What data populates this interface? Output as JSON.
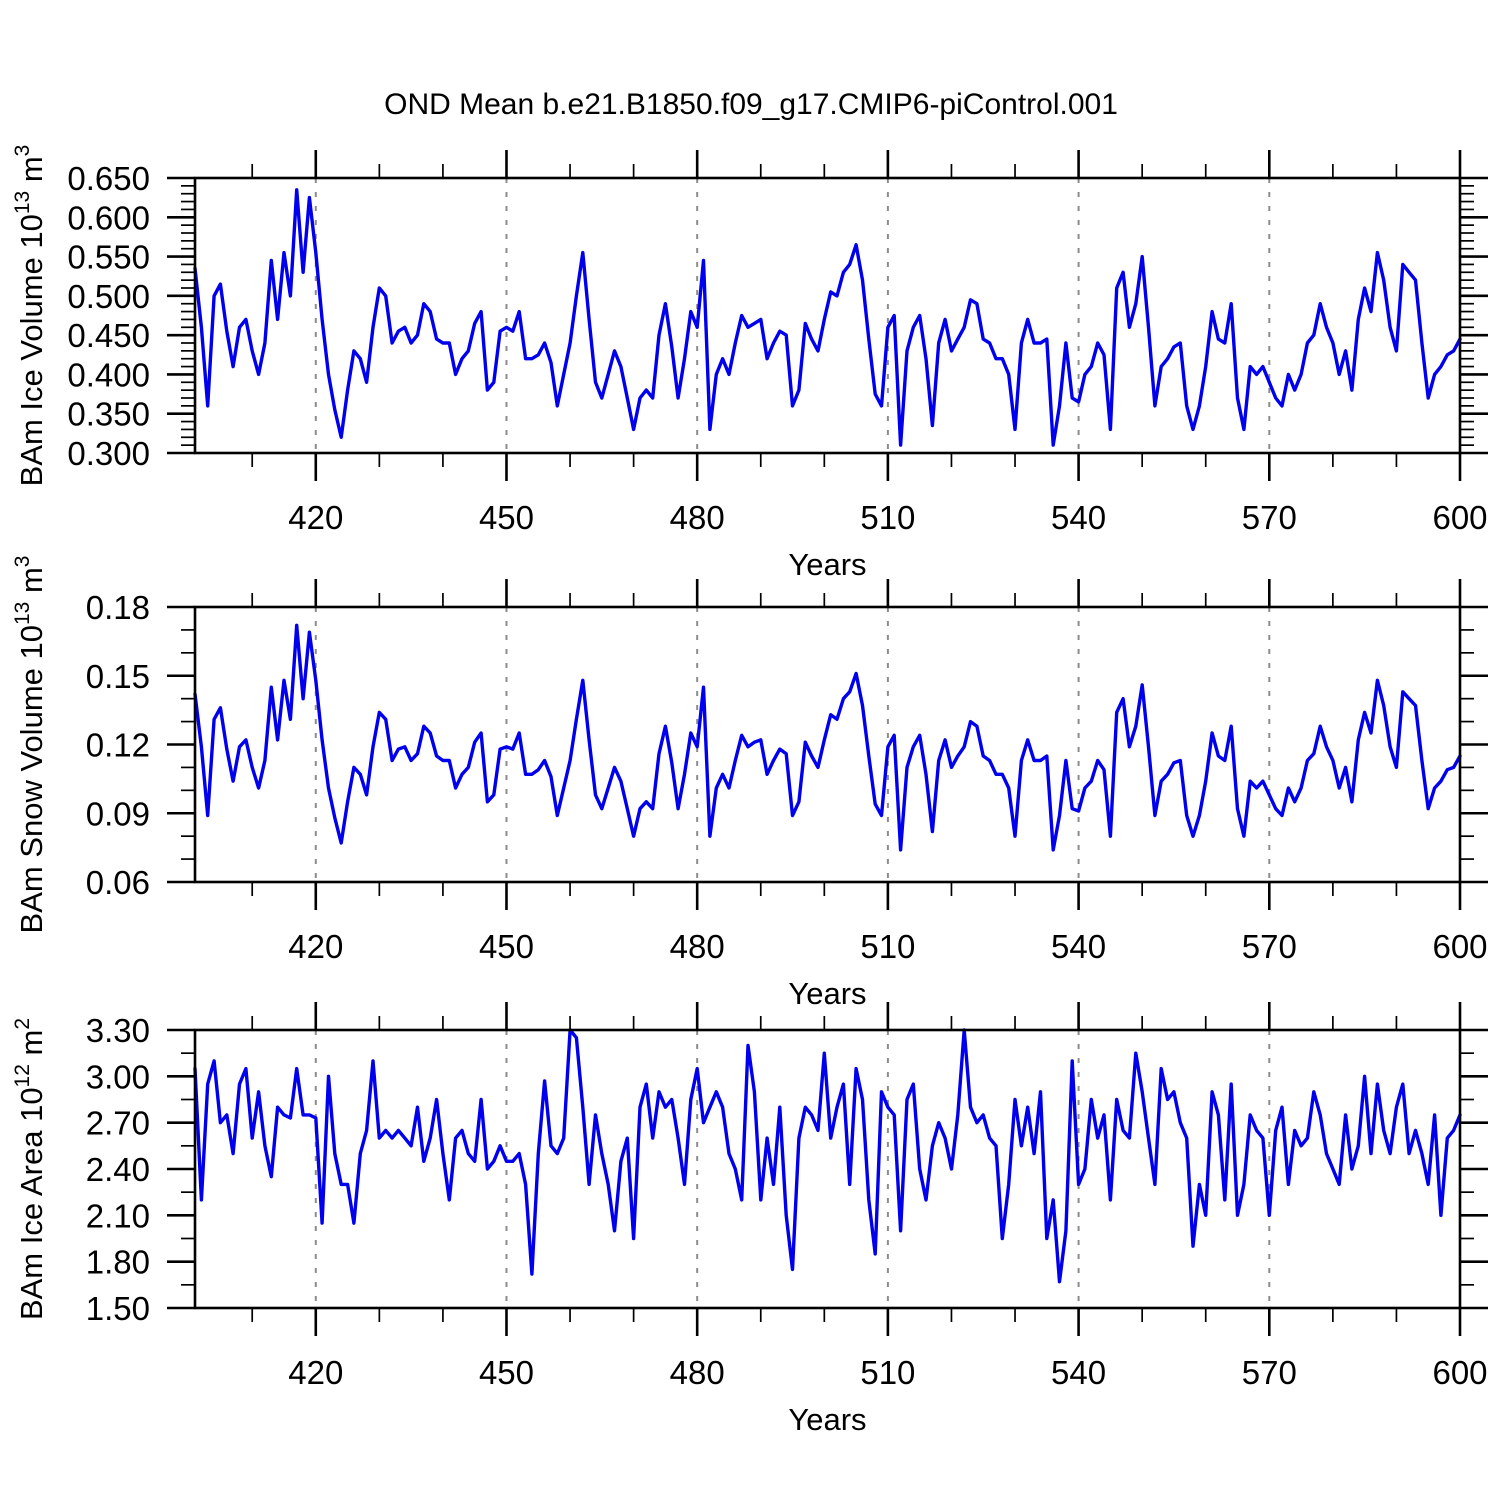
{
  "title": "OND Mean b.e21.B1850.f09_g17.CMIP6-piControl.001",
  "chart_data": {
    "type": "line",
    "title": "OND Mean b.e21.B1850.f09_g17.CMIP6-piControl.001",
    "legend": "none",
    "grid": "vertical-dashed-at-major-x-ticks",
    "style": {
      "line_color": "#0000ee",
      "grid_color": "#8c8c8c",
      "frame_color": "#000000",
      "text_color": "#000000"
    },
    "x": {
      "label": "Years",
      "start_year": 401,
      "end_year": 600,
      "xlim": [
        401,
        600
      ],
      "major_ticks": [
        420,
        450,
        480,
        510,
        540,
        570,
        600
      ],
      "minor_tick_step": 10,
      "gridline_years": [
        420,
        450,
        480,
        510,
        540,
        570
      ]
    },
    "panels": [
      {
        "id": "ice-volume",
        "ylabel_text": "BAm Ice Volume 10^13 m^3",
        "ylabel_parts": [
          {
            "text": "BAm Ice Volume 10"
          },
          {
            "text": "13",
            "sup": true
          },
          {
            "text": " m"
          },
          {
            "text": "3",
            "sup": true
          }
        ],
        "ylim": [
          0.3,
          0.65
        ],
        "ytick_values": [
          0.65,
          0.6,
          0.55,
          0.5,
          0.45,
          0.4,
          0.35,
          0.3
        ],
        "ytick_labels": [
          "0.650",
          "0.600",
          "0.550",
          "0.500",
          "0.450",
          "0.400",
          "0.350",
          "0.300"
        ],
        "yminor_step": 0.01,
        "values": [
          0.535,
          0.46,
          0.36,
          0.5,
          0.515,
          0.455,
          0.41,
          0.46,
          0.47,
          0.43,
          0.4,
          0.44,
          0.545,
          0.47,
          0.555,
          0.5,
          0.635,
          0.53,
          0.625,
          0.555,
          0.47,
          0.4,
          0.355,
          0.32,
          0.38,
          0.43,
          0.42,
          0.39,
          0.46,
          0.51,
          0.5,
          0.44,
          0.455,
          0.46,
          0.44,
          0.45,
          0.49,
          0.48,
          0.445,
          0.44,
          0.44,
          0.4,
          0.42,
          0.43,
          0.465,
          0.48,
          0.38,
          0.39,
          0.455,
          0.46,
          0.455,
          0.48,
          0.42,
          0.42,
          0.425,
          0.44,
          0.415,
          0.36,
          0.4,
          0.44,
          0.5,
          0.555,
          0.47,
          0.39,
          0.37,
          0.4,
          0.43,
          0.41,
          0.37,
          0.33,
          0.37,
          0.38,
          0.37,
          0.45,
          0.49,
          0.435,
          0.37,
          0.42,
          0.48,
          0.46,
          0.545,
          0.33,
          0.4,
          0.42,
          0.4,
          0.44,
          0.475,
          0.46,
          0.465,
          0.47,
          0.42,
          0.44,
          0.455,
          0.45,
          0.36,
          0.38,
          0.465,
          0.445,
          0.43,
          0.47,
          0.505,
          0.5,
          0.53,
          0.54,
          0.565,
          0.52,
          0.445,
          0.375,
          0.36,
          0.46,
          0.475,
          0.31,
          0.43,
          0.46,
          0.475,
          0.42,
          0.335,
          0.44,
          0.47,
          0.43,
          0.445,
          0.46,
          0.495,
          0.49,
          0.445,
          0.44,
          0.42,
          0.42,
          0.4,
          0.33,
          0.44,
          0.47,
          0.44,
          0.44,
          0.445,
          0.31,
          0.36,
          0.44,
          0.37,
          0.365,
          0.4,
          0.41,
          0.44,
          0.425,
          0.33,
          0.51,
          0.53,
          0.46,
          0.49,
          0.55,
          0.46,
          0.36,
          0.41,
          0.42,
          0.435,
          0.44,
          0.36,
          0.33,
          0.36,
          0.41,
          0.48,
          0.445,
          0.44,
          0.49,
          0.37,
          0.33,
          0.41,
          0.4,
          0.41,
          0.39,
          0.37,
          0.36,
          0.4,
          0.38,
          0.4,
          0.44,
          0.45,
          0.49,
          0.46,
          0.44,
          0.4,
          0.43,
          0.38,
          0.47,
          0.51,
          0.48,
          0.555,
          0.52,
          0.46,
          0.43,
          0.54,
          0.53,
          0.52,
          0.44,
          0.37,
          0.4,
          0.41,
          0.425,
          0.43,
          0.445
        ]
      },
      {
        "id": "snow-volume",
        "ylabel_text": "BAm Snow Volume 10^13 m^3",
        "ylabel_parts": [
          {
            "text": "BAm Snow Volume 10"
          },
          {
            "text": "13",
            "sup": true
          },
          {
            "text": " m"
          },
          {
            "text": "3",
            "sup": true
          }
        ],
        "ylim": [
          0.06,
          0.18
        ],
        "ytick_values": [
          0.18,
          0.15,
          0.12,
          0.09,
          0.06
        ],
        "ytick_labels": [
          "0.18",
          "0.15",
          "0.12",
          "0.09",
          "0.06"
        ],
        "yminor_step": 0.01,
        "values": [
          0.142,
          0.119,
          0.089,
          0.131,
          0.136,
          0.118,
          0.104,
          0.119,
          0.122,
          0.11,
          0.101,
          0.113,
          0.145,
          0.122,
          0.148,
          0.131,
          0.172,
          0.14,
          0.169,
          0.148,
          0.122,
          0.101,
          0.088,
          0.077,
          0.095,
          0.11,
          0.107,
          0.098,
          0.119,
          0.134,
          0.131,
          0.113,
          0.118,
          0.119,
          0.113,
          0.116,
          0.128,
          0.125,
          0.115,
          0.113,
          0.113,
          0.101,
          0.107,
          0.11,
          0.121,
          0.125,
          0.095,
          0.098,
          0.118,
          0.119,
          0.118,
          0.125,
          0.107,
          0.107,
          0.109,
          0.113,
          0.106,
          0.089,
          0.101,
          0.113,
          0.131,
          0.148,
          0.122,
          0.098,
          0.092,
          0.101,
          0.11,
          0.104,
          0.092,
          0.08,
          0.092,
          0.095,
          0.092,
          0.116,
          0.128,
          0.112,
          0.092,
          0.107,
          0.125,
          0.119,
          0.145,
          0.08,
          0.101,
          0.107,
          0.101,
          0.113,
          0.124,
          0.119,
          0.121,
          0.122,
          0.107,
          0.113,
          0.118,
          0.116,
          0.089,
          0.095,
          0.121,
          0.115,
          0.11,
          0.122,
          0.133,
          0.131,
          0.14,
          0.143,
          0.151,
          0.137,
          0.115,
          0.094,
          0.089,
          0.119,
          0.124,
          0.074,
          0.11,
          0.119,
          0.124,
          0.107,
          0.082,
          0.113,
          0.122,
          0.11,
          0.115,
          0.119,
          0.13,
          0.128,
          0.115,
          0.113,
          0.107,
          0.107,
          0.101,
          0.08,
          0.113,
          0.122,
          0.113,
          0.113,
          0.115,
          0.074,
          0.089,
          0.113,
          0.092,
          0.091,
          0.101,
          0.104,
          0.113,
          0.109,
          0.08,
          0.134,
          0.14,
          0.119,
          0.128,
          0.146,
          0.119,
          0.089,
          0.104,
          0.107,
          0.112,
          0.113,
          0.089,
          0.08,
          0.089,
          0.104,
          0.125,
          0.115,
          0.113,
          0.128,
          0.092,
          0.08,
          0.104,
          0.101,
          0.104,
          0.098,
          0.092,
          0.089,
          0.101,
          0.095,
          0.101,
          0.113,
          0.116,
          0.128,
          0.119,
          0.113,
          0.101,
          0.11,
          0.095,
          0.122,
          0.134,
          0.125,
          0.148,
          0.137,
          0.119,
          0.11,
          0.143,
          0.14,
          0.137,
          0.113,
          0.092,
          0.101,
          0.104,
          0.109,
          0.11,
          0.115
        ]
      },
      {
        "id": "ice-area",
        "ylabel_text": "BAm Ice Area 10^12 m^2",
        "ylabel_parts": [
          {
            "text": "BAm Ice Area 10"
          },
          {
            "text": "12",
            "sup": true
          },
          {
            "text": " m"
          },
          {
            "text": "2",
            "sup": true
          }
        ],
        "ylim": [
          1.5,
          3.3
        ],
        "ytick_values": [
          3.3,
          3.0,
          2.7,
          2.4,
          2.1,
          1.8,
          1.5
        ],
        "ytick_labels": [
          "3.30",
          "3.00",
          "2.70",
          "2.40",
          "2.10",
          "1.80",
          "1.50"
        ],
        "yminor_step": 0.15,
        "values": [
          3.05,
          2.2,
          2.95,
          3.1,
          2.7,
          2.75,
          2.5,
          2.95,
          3.05,
          2.6,
          2.9,
          2.55,
          2.35,
          2.8,
          2.75,
          2.73,
          3.05,
          2.75,
          2.75,
          2.73,
          2.05,
          3.0,
          2.5,
          2.3,
          2.3,
          2.05,
          2.5,
          2.65,
          3.1,
          2.6,
          2.65,
          2.6,
          2.65,
          2.6,
          2.55,
          2.8,
          2.45,
          2.6,
          2.85,
          2.5,
          2.2,
          2.6,
          2.65,
          2.5,
          2.45,
          2.85,
          2.4,
          2.45,
          2.55,
          2.45,
          2.45,
          2.5,
          2.3,
          1.72,
          2.5,
          2.97,
          2.55,
          2.5,
          2.6,
          3.3,
          3.25,
          2.8,
          2.3,
          2.75,
          2.5,
          2.3,
          2.0,
          2.45,
          2.6,
          1.95,
          2.8,
          2.95,
          2.6,
          2.9,
          2.8,
          2.85,
          2.6,
          2.3,
          2.85,
          3.05,
          2.7,
          2.8,
          2.9,
          2.8,
          2.5,
          2.4,
          2.2,
          3.2,
          2.9,
          2.2,
          2.6,
          2.3,
          2.8,
          2.1,
          1.75,
          2.6,
          2.8,
          2.75,
          2.65,
          3.15,
          2.6,
          2.8,
          2.95,
          2.3,
          3.05,
          2.85,
          2.2,
          1.85,
          2.9,
          2.8,
          2.75,
          2.0,
          2.85,
          2.95,
          2.4,
          2.2,
          2.55,
          2.7,
          2.6,
          2.4,
          2.75,
          3.3,
          2.8,
          2.7,
          2.75,
          2.6,
          2.55,
          1.95,
          2.3,
          2.85,
          2.55,
          2.8,
          2.5,
          2.9,
          1.95,
          2.2,
          1.67,
          2.0,
          3.1,
          2.3,
          2.4,
          2.85,
          2.6,
          2.75,
          2.2,
          2.85,
          2.65,
          2.6,
          3.15,
          2.9,
          2.6,
          2.3,
          3.05,
          2.85,
          2.9,
          2.7,
          2.6,
          1.9,
          2.3,
          2.1,
          2.9,
          2.75,
          2.2,
          2.95,
          2.1,
          2.3,
          2.75,
          2.65,
          2.6,
          2.1,
          2.65,
          2.8,
          2.3,
          2.65,
          2.55,
          2.6,
          2.9,
          2.75,
          2.5,
          2.4,
          2.3,
          2.75,
          2.4,
          2.55,
          3.0,
          2.5,
          2.95,
          2.65,
          2.5,
          2.8,
          2.95,
          2.5,
          2.65,
          2.5,
          2.3,
          2.75,
          2.1,
          2.6,
          2.65,
          2.75
        ]
      }
    ]
  }
}
